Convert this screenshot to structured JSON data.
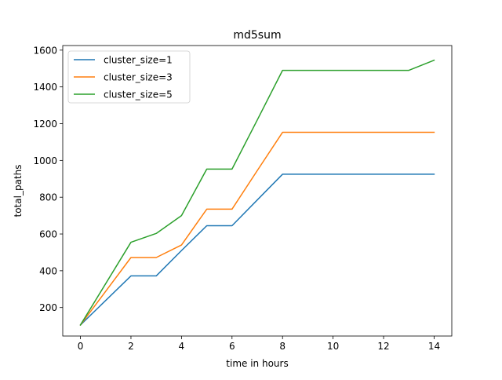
{
  "chart_data": {
    "type": "line",
    "title": "md5sum",
    "xlabel": "time in hours",
    "ylabel": "total_paths",
    "xlim": [
      -0.7,
      14.7
    ],
    "ylim": [
      45,
      1625
    ],
    "xticks": [
      0,
      2,
      4,
      6,
      8,
      10,
      12,
      14
    ],
    "yticks": [
      200,
      400,
      600,
      800,
      1000,
      1200,
      1400,
      1600
    ],
    "grid": false,
    "legend": "top-left",
    "x": [
      0,
      2,
      3,
      4,
      5,
      6,
      7,
      8,
      9,
      10,
      11,
      12,
      13,
      14
    ],
    "series": [
      {
        "name": "cluster_size=1",
        "color": "#1f77b4",
        "values": [
          105,
          372,
          372,
          510,
          645,
          645,
          785,
          925,
          925,
          925,
          925,
          925,
          925,
          925
        ]
      },
      {
        "name": "cluster_size=3",
        "color": "#ff7f0e",
        "values": [
          105,
          472,
          472,
          540,
          735,
          735,
          945,
          1153,
          1153,
          1153,
          1153,
          1153,
          1153,
          1153
        ]
      },
      {
        "name": "cluster_size=5",
        "color": "#2ca02c",
        "values": [
          105,
          555,
          603,
          700,
          953,
          953,
          1220,
          1490,
          1490,
          1490,
          1490,
          1490,
          1490,
          1545
        ]
      }
    ]
  }
}
